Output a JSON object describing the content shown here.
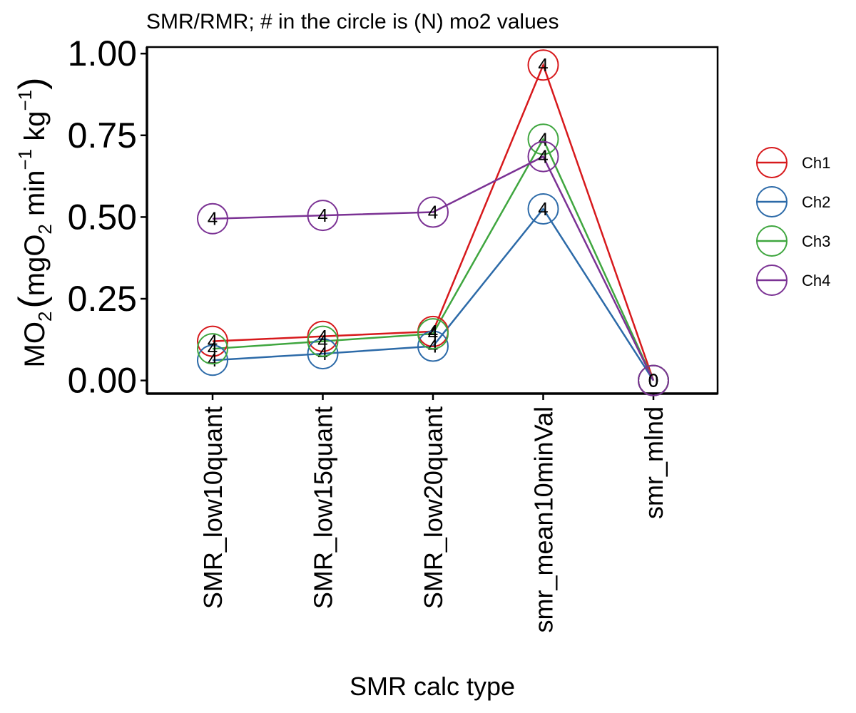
{
  "chart_data": {
    "type": "line",
    "title": "SMR/RMR; # in the circle is (N) mo2 values",
    "xlabel": "SMR calc type",
    "ylabel": {
      "base": "MO",
      "sub1": "2",
      "paren_open": "(",
      "unit_a": "mgO",
      "sub2": "2",
      "unit_b": " min",
      "sup1": "−1",
      "unit_c": " kg",
      "sup2": "−1",
      "paren_close": ")"
    },
    "categories": [
      "SMR_low10quant",
      "SMR_low15quant",
      "SMR_low20quant",
      "smr_mean10minVal",
      "smr_mlnd"
    ],
    "ylim": [
      -0.04,
      1.02
    ],
    "yticks": [
      "0.00",
      "0.25",
      "0.50",
      "0.75",
      "1.00"
    ],
    "ytick_values": [
      0,
      0.25,
      0.5,
      0.75,
      1.0
    ],
    "grid": false,
    "legend_position": "right",
    "series": [
      {
        "name": "Ch1",
        "color": "#d7191c",
        "values": [
          0.12,
          0.135,
          0.15,
          0.965,
          0
        ],
        "labels": [
          "4",
          "4",
          "4",
          "4",
          "0"
        ]
      },
      {
        "name": "Ch2",
        "color": "#2c6aa8",
        "values": [
          0.062,
          0.082,
          0.105,
          0.525,
          0
        ],
        "labels": [
          "4",
          "4",
          "4",
          "4",
          "0"
        ]
      },
      {
        "name": "Ch3",
        "color": "#3fa63f",
        "values": [
          0.097,
          0.12,
          0.143,
          0.738,
          0
        ],
        "labels": [
          "4",
          "4",
          "4",
          "4",
          "0"
        ]
      },
      {
        "name": "Ch4",
        "color": "#7b3294",
        "values": [
          0.495,
          0.505,
          0.515,
          0.685,
          0
        ],
        "labels": [
          "4",
          "4",
          "4",
          "4",
          "0"
        ]
      }
    ]
  }
}
